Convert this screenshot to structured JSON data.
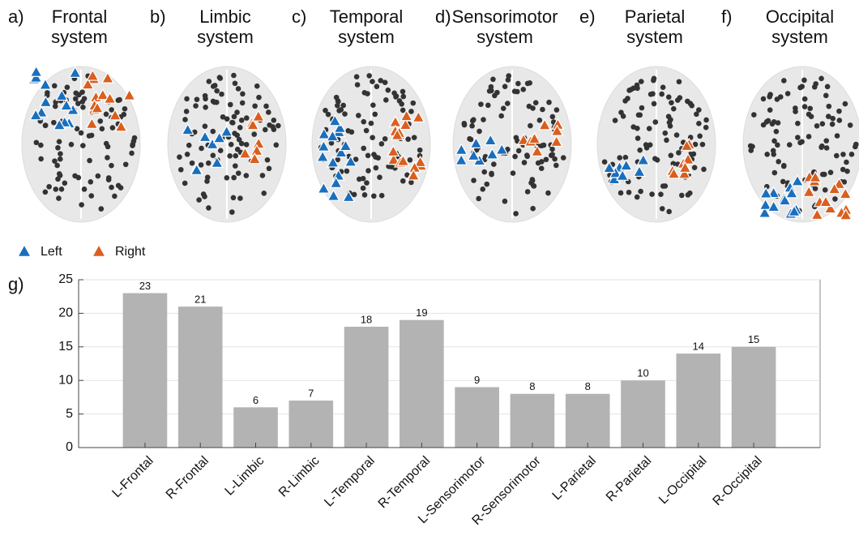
{
  "panels": [
    {
      "letter": "a)",
      "title": [
        "Frontal",
        "system"
      ]
    },
    {
      "letter": "b)",
      "title": [
        "Limbic",
        "system"
      ]
    },
    {
      "letter": "c)",
      "title": [
        "Temporal",
        "system"
      ]
    },
    {
      "letter": "d)",
      "title": [
        "Sensorimotor",
        "system"
      ]
    },
    {
      "letter": "e)",
      "title": [
        "Parietal",
        "system"
      ]
    },
    {
      "letter": "f)",
      "title": [
        "Occipital",
        "system"
      ]
    }
  ],
  "legend": {
    "items": [
      {
        "name": "Left",
        "color": "#1a6fbd"
      },
      {
        "name": "Right",
        "color": "#d95f1e"
      }
    ]
  },
  "chart_data": {
    "type": "bar",
    "panel_label": "g)",
    "categories": [
      "L-Frontal",
      "R-Frontal",
      "L-Limbic",
      "R-Limbic",
      "L-Temporal",
      "R-Temporal",
      "L-Sensorimotor",
      "R-Sensorimotor",
      "L-Parietal",
      "R-Parietal",
      "L-Occipital",
      "R-Occipital"
    ],
    "values": [
      23,
      21,
      6,
      7,
      18,
      19,
      9,
      8,
      8,
      10,
      14,
      15
    ],
    "color": "#b3b3b3",
    "ylim": [
      0,
      25
    ],
    "yticks": [
      0,
      5,
      10,
      15,
      20,
      25
    ],
    "grid": true
  }
}
